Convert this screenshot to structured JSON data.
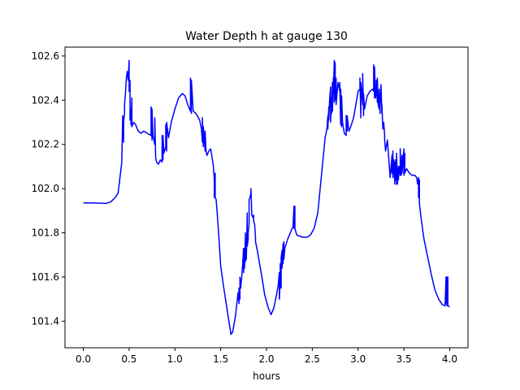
{
  "chart_data": {
    "type": "line",
    "title": "Water Depth h at gauge 130",
    "xlabel": "hours",
    "ylabel": "",
    "xlim": [
      -0.2,
      4.2
    ],
    "ylim": [
      101.28,
      102.64
    ],
    "xticks": [
      0.0,
      0.5,
      1.0,
      1.5,
      2.0,
      2.5,
      3.0,
      3.5,
      4.0
    ],
    "xtick_labels": [
      "0.0",
      "0.5",
      "1.0",
      "1.5",
      "2.0",
      "2.5",
      "3.0",
      "3.5",
      "4.0"
    ],
    "yticks": [
      101.4,
      101.6,
      101.8,
      102.0,
      102.2,
      102.4,
      102.6
    ],
    "ytick_labels": [
      "101.4",
      "101.6",
      "101.8",
      "102.0",
      "102.2",
      "102.4",
      "102.6"
    ],
    "grid": false,
    "series": [
      {
        "color": "#0000ff",
        "x": [
          0.0,
          0.1,
          0.2,
          0.25,
          0.3,
          0.35,
          0.38,
          0.4,
          0.42,
          0.43,
          0.44,
          0.44,
          0.45,
          0.45,
          0.46,
          0.47,
          0.48,
          0.49,
          0.5,
          0.5,
          0.51,
          0.51,
          0.52,
          0.52,
          0.53,
          0.53,
          0.54,
          0.55,
          0.57,
          0.6,
          0.63,
          0.66,
          0.7,
          0.74,
          0.74,
          0.75,
          0.75,
          0.76,
          0.77,
          0.78,
          0.78,
          0.79,
          0.8,
          0.82,
          0.84,
          0.86,
          0.86,
          0.87,
          0.87,
          0.88,
          0.9,
          0.9,
          0.91,
          0.91,
          0.93,
          0.96,
          1.0,
          1.04,
          1.08,
          1.11,
          1.14,
          1.17,
          1.17,
          1.18,
          1.18,
          1.2,
          1.23,
          1.27,
          1.29,
          1.3,
          1.3,
          1.31,
          1.31,
          1.33,
          1.33,
          1.34,
          1.35,
          1.37,
          1.39,
          1.41,
          1.42,
          1.43,
          1.43,
          1.44,
          1.44,
          1.45,
          1.46,
          1.48,
          1.5,
          1.53,
          1.56,
          1.6,
          1.61,
          1.61,
          1.63,
          1.66,
          1.69,
          1.7,
          1.7,
          1.71,
          1.71,
          1.72,
          1.72,
          1.73,
          1.74,
          1.75,
          1.75,
          1.76,
          1.76,
          1.77,
          1.77,
          1.78,
          1.78,
          1.79,
          1.79,
          1.8,
          1.8,
          1.81,
          1.81,
          1.82,
          1.83,
          1.83,
          1.84,
          1.85,
          1.86,
          1.86,
          1.87,
          1.88,
          1.88,
          1.9,
          1.92,
          1.95,
          1.98,
          2.02,
          2.05,
          2.08,
          2.11,
          2.13,
          2.14,
          2.14,
          2.15,
          2.15,
          2.16,
          2.16,
          2.17,
          2.17,
          2.18,
          2.18,
          2.19,
          2.19,
          2.2,
          2.23,
          2.26,
          2.29,
          2.3,
          2.3,
          2.31,
          2.31,
          2.33,
          2.36,
          2.4,
          2.44,
          2.48,
          2.52,
          2.56,
          2.6,
          2.64,
          2.66,
          2.67,
          2.67,
          2.68,
          2.68,
          2.69,
          2.7,
          2.7,
          2.71,
          2.71,
          2.72,
          2.72,
          2.73,
          2.73,
          2.74,
          2.74,
          2.75,
          2.75,
          2.76,
          2.76,
          2.78,
          2.8,
          2.8,
          2.81,
          2.81,
          2.82,
          2.82,
          2.83,
          2.85,
          2.87,
          2.87,
          2.88,
          2.88,
          2.9,
          2.92,
          2.95,
          2.98,
          3.0,
          3.02,
          3.02,
          3.03,
          3.03,
          3.05,
          3.05,
          3.06,
          3.06,
          3.07,
          3.1,
          3.13,
          3.16,
          3.17,
          3.17,
          3.18,
          3.18,
          3.19,
          3.2,
          3.2,
          3.21,
          3.21,
          3.22,
          3.23,
          3.23,
          3.24,
          3.24,
          3.25,
          3.26,
          3.26,
          3.27,
          3.28,
          3.28,
          3.29,
          3.29,
          3.3,
          3.32,
          3.35,
          3.37,
          3.37,
          3.38,
          3.38,
          3.39,
          3.4,
          3.4,
          3.41,
          3.41,
          3.42,
          3.42,
          3.43,
          3.44,
          3.44,
          3.45,
          3.46,
          3.46,
          3.47,
          3.48,
          3.48,
          3.5,
          3.5,
          3.51,
          3.51,
          3.53,
          3.56,
          3.59,
          3.62,
          3.64,
          3.65,
          3.66,
          3.66,
          3.67,
          3.67,
          3.69,
          3.72,
          3.76,
          3.8,
          3.84,
          3.88,
          3.92,
          3.95,
          3.96,
          3.96,
          3.97,
          3.97,
          3.98,
          3.98,
          4.0
        ],
        "y": [
          101.935,
          101.935,
          101.934,
          101.933,
          101.94,
          101.96,
          101.98,
          102.05,
          102.12,
          102.33,
          102.21,
          102.3,
          102.34,
          102.38,
          102.43,
          102.5,
          102.53,
          102.49,
          102.58,
          102.44,
          102.49,
          102.31,
          102.36,
          102.29,
          102.41,
          102.28,
          102.29,
          102.3,
          102.29,
          102.26,
          102.25,
          102.26,
          102.25,
          102.24,
          102.37,
          102.22,
          102.36,
          102.24,
          102.22,
          102.2,
          102.32,
          102.14,
          102.12,
          102.11,
          102.13,
          102.12,
          102.24,
          102.13,
          102.24,
          102.16,
          102.19,
          102.29,
          102.17,
          102.3,
          102.23,
          102.3,
          102.36,
          102.41,
          102.43,
          102.42,
          102.38,
          102.35,
          102.5,
          102.34,
          102.49,
          102.35,
          102.34,
          102.31,
          102.27,
          102.21,
          102.32,
          102.19,
          102.28,
          102.17,
          102.26,
          102.17,
          102.15,
          102.17,
          102.18,
          102.13,
          102.1,
          102.04,
          101.96,
          102.07,
          101.96,
          101.95,
          101.9,
          101.78,
          101.65,
          101.56,
          101.48,
          101.37,
          101.35,
          101.34,
          101.35,
          101.42,
          101.53,
          101.48,
          101.55,
          101.5,
          101.6,
          101.55,
          101.56,
          101.6,
          101.66,
          101.73,
          101.62,
          101.73,
          101.64,
          101.8,
          101.67,
          101.76,
          101.68,
          101.89,
          101.74,
          101.77,
          101.8,
          101.84,
          101.95,
          101.96,
          101.98,
          102.0,
          101.88,
          101.87,
          101.88,
          101.85,
          101.84,
          101.78,
          101.76,
          101.72,
          101.67,
          101.6,
          101.52,
          101.46,
          101.43,
          101.46,
          101.52,
          101.57,
          101.62,
          101.5,
          101.58,
          101.66,
          101.55,
          101.69,
          101.72,
          101.64,
          101.75,
          101.66,
          101.76,
          101.68,
          101.73,
          101.77,
          101.8,
          101.83,
          101.92,
          101.82,
          101.92,
          101.82,
          101.79,
          101.785,
          101.78,
          101.78,
          101.79,
          101.82,
          101.89,
          102.06,
          102.23,
          102.27,
          102.33,
          102.27,
          102.37,
          102.31,
          102.41,
          102.46,
          102.3,
          102.41,
          102.34,
          102.48,
          102.35,
          102.5,
          102.43,
          102.58,
          102.39,
          102.57,
          102.4,
          102.5,
          102.38,
          102.48,
          102.44,
          102.48,
          102.29,
          102.45,
          102.28,
          102.42,
          102.3,
          102.25,
          102.24,
          102.33,
          102.26,
          102.33,
          102.26,
          102.28,
          102.32,
          102.39,
          102.44,
          102.45,
          102.5,
          102.32,
          102.48,
          102.38,
          102.52,
          102.33,
          102.43,
          102.36,
          102.42,
          102.44,
          102.45,
          102.44,
          102.56,
          102.41,
          102.55,
          102.41,
          102.44,
          102.49,
          102.39,
          102.5,
          102.38,
          102.36,
          102.45,
          102.34,
          102.37,
          102.47,
          102.34,
          102.38,
          102.27,
          102.29,
          102.3,
          102.24,
          102.22,
          102.17,
          102.22,
          102.05,
          102.15,
          102.07,
          102.17,
          102.05,
          102.13,
          102.02,
          102.12,
          102.04,
          102.13,
          102.02,
          102.16,
          102.02,
          102.1,
          102.04,
          102.1,
          102.06,
          102.18,
          102.06,
          102.15,
          102.07,
          102.18,
          102.06,
          102.16,
          102.07,
          102.09,
          102.07,
          102.06,
          102.06,
          102.05,
          102.02,
          102.05,
          101.96,
          102.04,
          101.93,
          101.86,
          101.77,
          101.69,
          101.61,
          101.54,
          101.5,
          101.475,
          101.47,
          101.6,
          101.48,
          101.6,
          101.47,
          101.6,
          101.47,
          101.465
        ]
      }
    ]
  }
}
